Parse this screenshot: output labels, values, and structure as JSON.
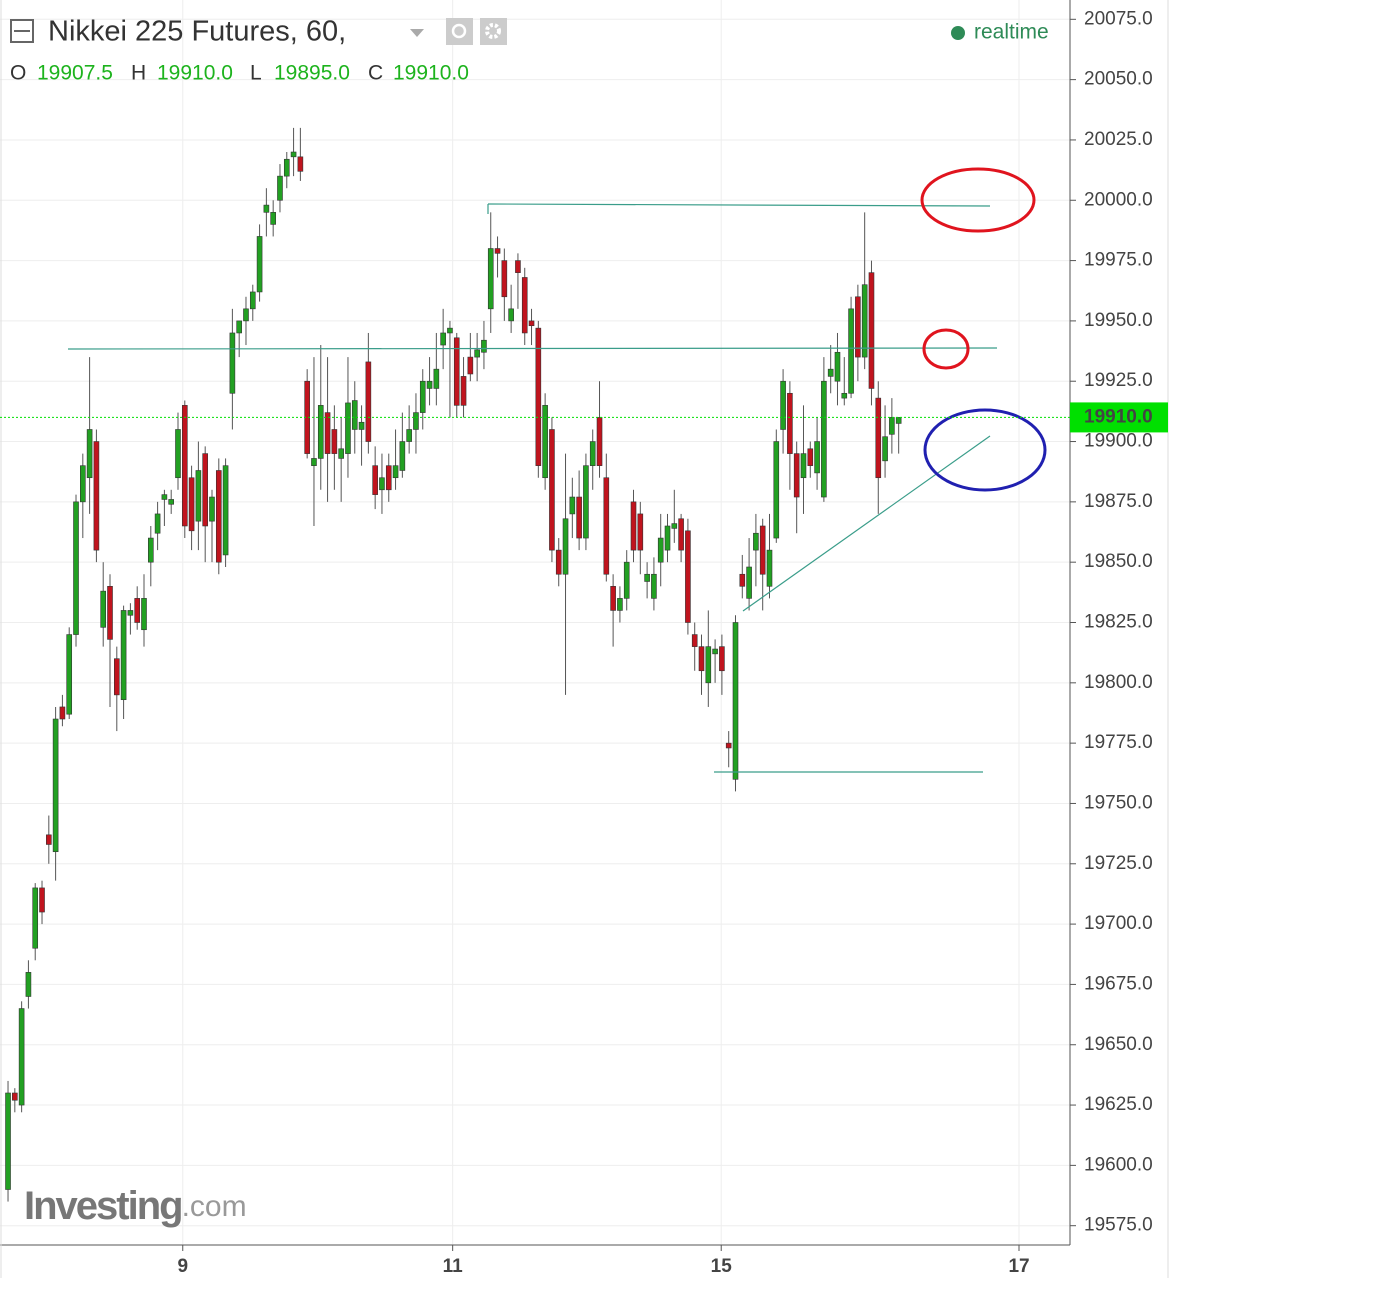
{
  "header": {
    "title": "Nikkei 225 Futures, 60,",
    "ohlc": [
      {
        "key": "O",
        "value": "19907.5"
      },
      {
        "key": "H",
        "value": "19910.0"
      },
      {
        "key": "L",
        "value": "19895.0"
      },
      {
        "key": "C",
        "value": "19910.0"
      }
    ],
    "status": "realtime",
    "watermark": {
      "brand": "Investing",
      "suffix": ".com"
    }
  },
  "chart_data": {
    "type": "candlestick",
    "up_color": "#22a022",
    "down_color": "#c0141e",
    "xlim": [
      -1.18,
      156.2
    ],
    "xticks": [
      {
        "value": 25.7,
        "label": "9"
      },
      {
        "value": 65.4,
        "label": "11"
      },
      {
        "value": 104.9,
        "label": "15"
      },
      {
        "value": 148.7,
        "label": "17"
      }
    ],
    "ylim": [
      19567,
      20083
    ],
    "yticks": [
      {
        "value": 19575,
        "label": "19575.0"
      },
      {
        "value": 19600,
        "label": "19600.0"
      },
      {
        "value": 19625,
        "label": "19625.0"
      },
      {
        "value": 19650,
        "label": "19650.0"
      },
      {
        "value": 19675,
        "label": "19675.0"
      },
      {
        "value": 19700,
        "label": "19700.0"
      },
      {
        "value": 19725,
        "label": "19725.0"
      },
      {
        "value": 19750,
        "label": "19750.0"
      },
      {
        "value": 19775,
        "label": "19775.0"
      },
      {
        "value": 19800,
        "label": "19800.0"
      },
      {
        "value": 19825,
        "label": "19825.0"
      },
      {
        "value": 19850,
        "label": "19850.0"
      },
      {
        "value": 19875,
        "label": "19875.0"
      },
      {
        "value": 19900,
        "label": "19900.0"
      },
      {
        "value": 19925,
        "label": "19925.0"
      },
      {
        "value": 19950,
        "label": "19950.0"
      },
      {
        "value": 19975,
        "label": "19975.0"
      },
      {
        "value": 20000,
        "label": "20000.0"
      },
      {
        "value": 20025,
        "label": "20025.0"
      },
      {
        "value": 20050,
        "label": "20050.0"
      },
      {
        "value": 20075,
        "label": "20075.0"
      }
    ],
    "grid": true,
    "last_price": {
      "value": 19910,
      "label": "19910.0",
      "color": "#00e000"
    },
    "open": [
      19590,
      19630,
      19625,
      19670,
      19690,
      19715,
      19737,
      19730,
      19790,
      19787,
      19820,
      19875,
      19885,
      19900,
      19823,
      19840,
      19810,
      19793,
      19828,
      19835,
      19822,
      19850,
      19862,
      19876,
      19874,
      19885,
      19915,
      19885,
      19867,
      19895,
      19867,
      19888,
      19853,
      19920,
      19945,
      19950,
      19955,
      19962,
      19995,
      19990,
      20000,
      20010,
      20018,
      20018,
      19925,
      19890,
      19893,
      19912,
      19905,
      19893,
      19895,
      19905,
      19905,
      19933,
      19890,
      19880,
      19890,
      19885,
      19888,
      19900,
      19905,
      19912,
      19922,
      19922,
      19940,
      19945,
      19943,
      19927,
      19935,
      19935,
      19937,
      19955,
      19980,
      19975,
      19950,
      19975,
      19968,
      19950,
      19947,
      19885,
      19905,
      19855,
      19845,
      19870,
      19877,
      19860,
      19890,
      19910,
      19885,
      19840,
      19830,
      19835,
      19875,
      19870,
      19842,
      19835,
      19850,
      19855,
      19864,
      19868,
      19863,
      19820,
      19815,
      19800,
      19812,
      19815,
      19775,
      19760,
      19845,
      19835,
      19855,
      19865,
      19840,
      19860,
      19905,
      19920,
      19895,
      19885,
      19897,
      19887,
      19877,
      19927,
      19925,
      19918,
      19920,
      19960,
      19935,
      19970,
      19918,
      19892,
      19903,
      19907.5
    ],
    "high": [
      19635,
      19632,
      19668,
      19685,
      19717,
      19718,
      19745,
      19790,
      19795,
      19823,
      19878,
      19895,
      19935,
      19905,
      19850,
      19845,
      19815,
      19832,
      19833,
      19840,
      19845,
      19865,
      19875,
      19880,
      19880,
      19912,
      19917,
      19890,
      19900,
      19898,
      19880,
      19893,
      19893,
      19955,
      19950,
      19960,
      19965,
      19990,
      20005,
      20000,
      20015,
      20020,
      20030,
      20030,
      19930,
      19935,
      19940,
      19935,
      19915,
      19910,
      19935,
      19925,
      19915,
      19945,
      19898,
      19895,
      19895,
      19905,
      19912,
      19915,
      19920,
      19930,
      19935,
      19945,
      19955,
      19950,
      19945,
      19935,
      19945,
      19945,
      19950,
      19995,
      19985,
      19980,
      19965,
      19978,
      19972,
      19955,
      19950,
      19920,
      19910,
      19860,
      19895,
      19885,
      19888,
      19895,
      19905,
      19925,
      19895,
      19845,
      19840,
      19855,
      19880,
      19875,
      19850,
      19852,
      19870,
      19870,
      19880,
      19870,
      19868,
      19825,
      19820,
      19830,
      19818,
      19820,
      19780,
      19828,
      19853,
      19860,
      19870,
      19868,
      19870,
      19905,
      19930,
      19925,
      19900,
      19915,
      19900,
      19910,
      19935,
      19940,
      19945,
      19935,
      19960,
      19965,
      19995,
      19975,
      19925,
      19915,
      19918,
      19910
    ],
    "low": [
      19585,
      19622,
      19622,
      19665,
      19685,
      19700,
      19725,
      19718,
      19782,
      19785,
      19815,
      19860,
      19870,
      19850,
      19815,
      19790,
      19780,
      19785,
      19820,
      19822,
      19815,
      19840,
      19855,
      19865,
      19870,
      19880,
      19860,
      19855,
      19855,
      19850,
      19850,
      19845,
      19848,
      19905,
      19935,
      19940,
      19950,
      19958,
      19985,
      19985,
      19995,
      20005,
      20010,
      20008,
      19893,
      19865,
      19880,
      19875,
      19880,
      19875,
      19885,
      19895,
      19890,
      19895,
      19872,
      19870,
      19875,
      19880,
      19885,
      19895,
      19895,
      19905,
      19915,
      19915,
      19930,
      19910,
      19910,
      19910,
      19925,
      19925,
      19930,
      19945,
      19968,
      19950,
      19945,
      19955,
      19940,
      19940,
      19885,
      19880,
      19850,
      19840,
      19795,
      19860,
      19855,
      19855,
      19880,
      19885,
      19842,
      19815,
      19825,
      19830,
      19850,
      19845,
      19835,
      19830,
      19840,
      19850,
      19858,
      19850,
      19820,
      19805,
      19795,
      19790,
      19800,
      19795,
      19765,
      19755,
      19835,
      19830,
      19840,
      19830,
      19835,
      19858,
      19895,
      19880,
      19862,
      19870,
      19885,
      19880,
      19875,
      19920,
      19915,
      19915,
      19918,
      19925,
      19930,
      19915,
      19870,
      19885,
      19895,
      19895
    ],
    "close": [
      19630,
      19627,
      19665,
      19680,
      19715,
      19705,
      19733,
      19785,
      19785,
      19820,
      19875,
      19890,
      19905,
      19855,
      19838,
      19818,
      19795,
      19830,
      19830,
      19825,
      19835,
      19860,
      19870,
      19878,
      19876,
      19905,
      19865,
      19863,
      19888,
      19865,
      19877,
      19850,
      19890,
      19945,
      19950,
      19955,
      19962,
      19985,
      19998,
      19995,
      20010,
      20017,
      20020,
      20012,
      19895,
      19893,
      19915,
      19895,
      19895,
      19897,
      19916,
      19917,
      19908,
      19900,
      19878,
      19885,
      19880,
      19890,
      19900,
      19905,
      19912,
      19925,
      19925,
      19930,
      19945,
      19947,
      19915,
      19915,
      19928,
      19938,
      19942,
      19980,
      19978,
      19960,
      19955,
      19970,
      19945,
      19948,
      19890,
      19915,
      19855,
      19845,
      19868,
      19877,
      19860,
      19890,
      19900,
      19890,
      19845,
      19830,
      19835,
      19850,
      19855,
      19855,
      19845,
      19845,
      19860,
      19865,
      19866,
      19855,
      19825,
      19815,
      19805,
      19815,
      19814,
      19805,
      19773,
      19825,
      19840,
      19848,
      19862,
      19845,
      19855,
      19900,
      19925,
      19895,
      19877,
      19895,
      19890,
      19900,
      19925,
      19930,
      19937,
      19920,
      19955,
      19935,
      19965,
      19922,
      19885,
      19902,
      19910,
      19910
    ]
  }
}
